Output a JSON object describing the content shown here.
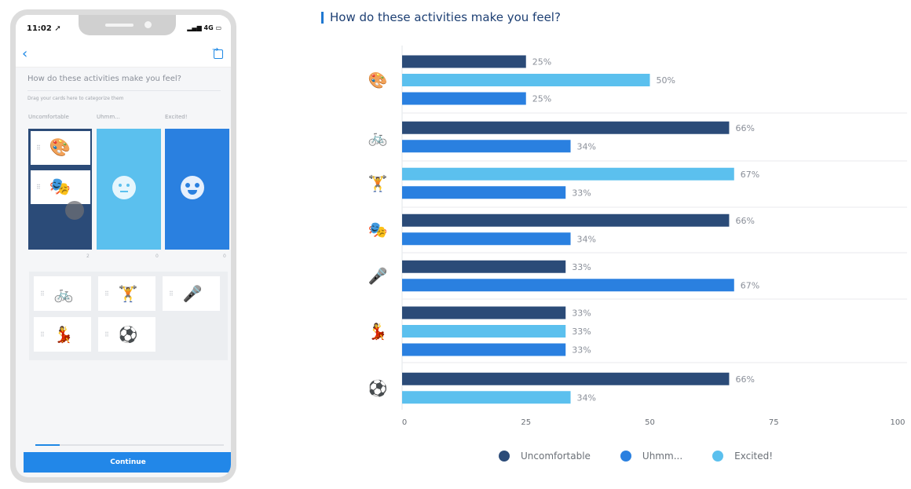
{
  "phone": {
    "status_time": "11:02 ➚",
    "status_signal": "▂▄▆ 4G ▭",
    "question": "How do these activities make you feel?",
    "hint": "Drag your cards here to categorize them",
    "columns": [
      {
        "label": "Uncomfortable",
        "count": "2"
      },
      {
        "label": "Uhmm...",
        "count": "0"
      },
      {
        "label": "Excited!",
        "count": "0"
      }
    ],
    "placed_cards": [
      "🎨",
      "🎭"
    ],
    "pool_cards": [
      "🚲",
      "🏋",
      "🎤",
      "💃",
      "⚽"
    ],
    "grip": "⠿",
    "progress": 0.13,
    "continue_label": "Continue"
  },
  "colors": {
    "uncomfortable": "#2b4b78",
    "uhmm": "#2a80e0",
    "excited": "#5bc0ee",
    "accent": "#1e88e5"
  },
  "chart_data": {
    "type": "bar",
    "orientation": "horizontal",
    "title": "How do these activities make you feel?",
    "xlim": [
      0,
      100
    ],
    "xticks": [
      0,
      25,
      50,
      75,
      100
    ],
    "grid": true,
    "legend_position": "bottom",
    "series_names": [
      "Uncomfortable",
      "Uhmm...",
      "Excited!"
    ],
    "categories": [
      {
        "icon": "🎨",
        "bars": [
          {
            "series": "Uncomfortable",
            "value": 25
          },
          {
            "series": "Excited!",
            "value": 50
          },
          {
            "series": "Uhmm...",
            "value": 25
          }
        ]
      },
      {
        "icon": "🚲",
        "bars": [
          {
            "series": "Uncomfortable",
            "value": 66
          },
          {
            "series": "Uhmm...",
            "value": 34
          }
        ]
      },
      {
        "icon": "🏋",
        "bars": [
          {
            "series": "Excited!",
            "value": 67
          },
          {
            "series": "Uhmm...",
            "value": 33
          }
        ]
      },
      {
        "icon": "🎭",
        "bars": [
          {
            "series": "Uncomfortable",
            "value": 66
          },
          {
            "series": "Uhmm...",
            "value": 34
          }
        ]
      },
      {
        "icon": "🎤",
        "bars": [
          {
            "series": "Uncomfortable",
            "value": 33
          },
          {
            "series": "Uhmm...",
            "value": 67
          }
        ]
      },
      {
        "icon": "💃",
        "bars": [
          {
            "series": "Uncomfortable",
            "value": 33
          },
          {
            "series": "Excited!",
            "value": 33
          },
          {
            "series": "Uhmm...",
            "value": 33
          }
        ]
      },
      {
        "icon": "⚽",
        "bars": [
          {
            "series": "Uncomfortable",
            "value": 66
          },
          {
            "series": "Excited!",
            "value": 34
          }
        ]
      }
    ]
  }
}
